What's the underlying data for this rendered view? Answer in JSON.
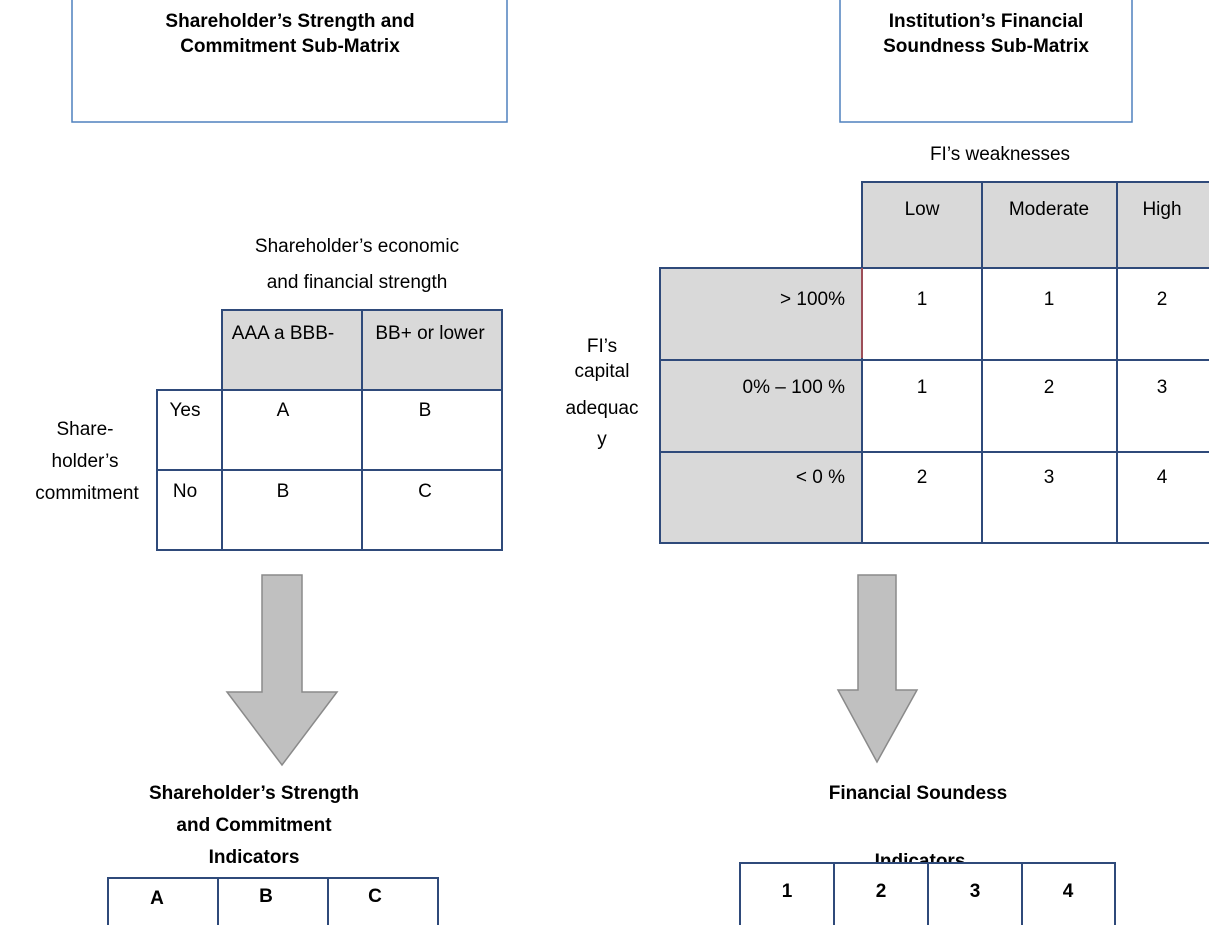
{
  "left": {
    "title": [
      "Shareholder’s Strength and",
      "Commitment Sub-Matrix"
    ],
    "column_header": [
      "Shareholder’s economic",
      "and financial strength"
    ],
    "row_header": [
      "Share-",
      "holder’s",
      "commitment"
    ],
    "columns": [
      "AAA a BBB-",
      "BB+ or lower"
    ],
    "rows": [
      {
        "label": "Yes",
        "cells": [
          "A",
          "B"
        ]
      },
      {
        "label": "No",
        "cells": [
          "B",
          "C"
        ]
      }
    ],
    "result_title": [
      "Shareholder’s Strength",
      "and Commitment",
      "Indicators"
    ],
    "indicators": [
      "A",
      "B",
      "C"
    ]
  },
  "right": {
    "title": [
      "Institution’s Financial",
      "Soundness Sub-Matrix"
    ],
    "column_header": "FI’s weaknesses",
    "row_header": [
      "FI’s",
      "capital",
      "adequac",
      "y"
    ],
    "columns": [
      "Low",
      "Moderate",
      "High"
    ],
    "rows": [
      {
        "label": "> 100%",
        "cells": [
          "1",
          "1",
          "2"
        ]
      },
      {
        "label": "0% – 100 %",
        "cells": [
          "1",
          "2",
          "3"
        ]
      },
      {
        "label": "< 0 %",
        "cells": [
          "2",
          "3",
          "4"
        ]
      }
    ],
    "result_title": [
      "Financial Soundess",
      "Indicators"
    ],
    "indicators": [
      "1",
      "2",
      "3",
      "4"
    ]
  }
}
